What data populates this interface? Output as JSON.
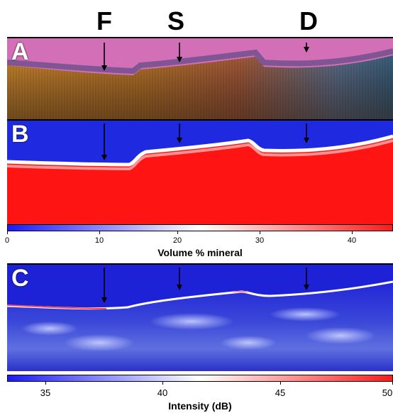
{
  "top_labels": {
    "f": "F",
    "s": "S",
    "d": "D"
  },
  "panels": {
    "a": "A",
    "b": "B",
    "c": "C"
  },
  "colorbar_mineral": {
    "label": "Volume % mineral",
    "ticks": [
      "0",
      "10",
      "20",
      "30",
      "40"
    ],
    "colors": [
      "#1a1aff",
      "#ffffff",
      "#ff1a1a"
    ]
  },
  "colorbar_intensity": {
    "label": "Intensity (dB)",
    "ticks": [
      "35",
      "40",
      "45",
      "50"
    ],
    "colors": [
      "#1a1aff",
      "#ffffff",
      "#ff1a1a"
    ]
  }
}
